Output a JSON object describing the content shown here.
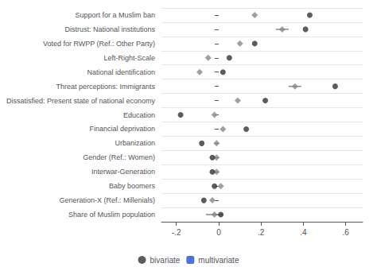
{
  "chart_data": {
    "type": "scatter",
    "orientation": "horizontal",
    "categories": [
      "Support for a Muslim ban",
      "Distrust: National institutions",
      "Voted for RWPP (Ref.: Other Party)",
      "Left-Right-Scale",
      "National identification",
      "Threat perceptions: Immigrants",
      "Dissatisfied: Present state of national economy",
      "Education",
      "Financial deprivation",
      "Urbanization",
      "Gender (Ref.: Women)",
      "Interwar-Generation",
      "Baby boomers",
      "Generation-X (Ref.: Millenials)",
      "Share of Muslim population"
    ],
    "series": [
      {
        "name": "bivariate",
        "color": "#333333",
        "marker": "circle",
        "values": [
          0.43,
          0.41,
          0.17,
          0.05,
          0.02,
          0.55,
          0.22,
          -0.18,
          0.13,
          -0.08,
          -0.03,
          -0.03,
          -0.02,
          -0.07,
          0.01
        ]
      },
      {
        "name": "multivariate",
        "color": "#888888",
        "marker": "diamond",
        "values": [
          0.17,
          0.3,
          0.1,
          -0.05,
          -0.09,
          0.36,
          0.09,
          -0.02,
          0.02,
          -0.01,
          -0.01,
          -0.01,
          0.01,
          -0.03,
          -0.02
        ],
        "ci_low": [
          0.17,
          0.27,
          0.1,
          -0.05,
          -0.09,
          0.33,
          0.09,
          -0.02,
          0.02,
          -0.01,
          -0.01,
          -0.01,
          0.01,
          -0.03,
          -0.06
        ],
        "ci_high": [
          0.17,
          0.33,
          0.1,
          -0.05,
          -0.09,
          0.39,
          0.09,
          -0.02,
          0.02,
          -0.01,
          -0.01,
          -0.01,
          0.01,
          -0.03,
          0.02
        ]
      }
    ],
    "xlim": [
      -0.27,
      0.68
    ],
    "xticks": [
      {
        "value": -0.2,
        "label": "-.2"
      },
      0,
      {
        "value": 0.2,
        "label": ".2"
      },
      {
        "value": 0.4,
        "label": ".4"
      },
      {
        "value": 0.6,
        "label": ".6"
      }
    ],
    "grid": true,
    "legend": "bottom"
  }
}
